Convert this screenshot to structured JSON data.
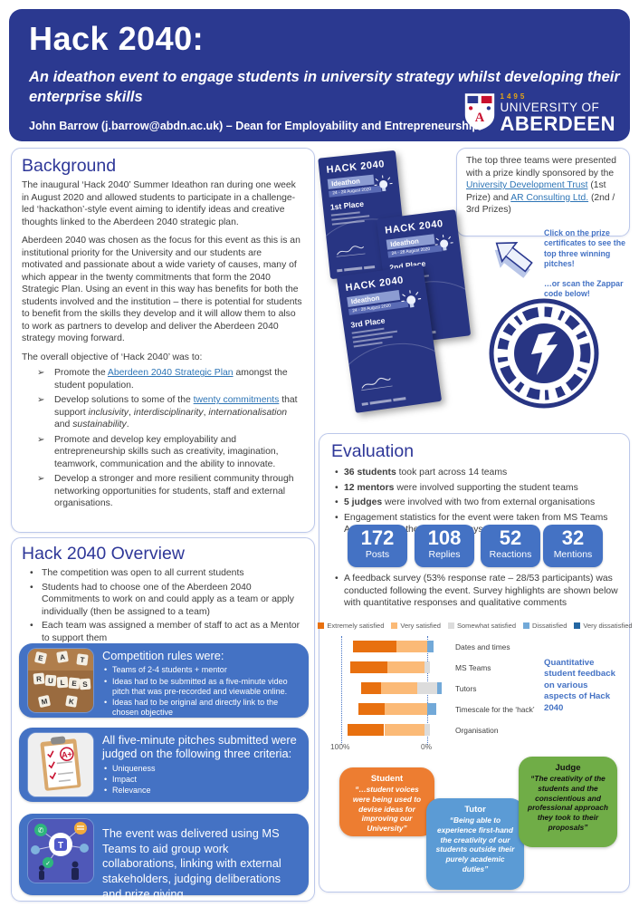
{
  "colors": {
    "header_navy": "#2B3990",
    "panel_border": "#BCC8EA",
    "section_title_blue": "#2E3798",
    "box_blue": "#4472C4",
    "link_blue": "#2E75B6",
    "student_orange": "#ED7D31",
    "tutor_blue": "#5B9BD5",
    "judge_green": "#70AD47"
  },
  "header": {
    "title": "Hack 2040:",
    "subtitle": "An ideathon event to engage students in university strategy whilst developing their enterprise skills",
    "author": "John Barrow (j.barrow@abdn.ac.uk) – Dean for Employability and Entrepreneurship",
    "logo": {
      "founded": "1495",
      "line1": "UNIVERSITY OF",
      "line2": "ABERDEEN"
    }
  },
  "background": {
    "title": "Background",
    "para1": "The inaugural ‘Hack 2040’ Summer Ideathon ran during one week in August 2020 and allowed students to participate in a challenge-led ‘hackathon’-style event aiming to identify ideas and creative thoughts linked to the Aberdeen 2040 strategic plan.",
    "para2": "Aberdeen 2040 was chosen as the focus for this event as this is an institutional priority for the University and our students are motivated and passionate about a wide variety of causes, many of which appear in the twenty commitments that form the 2040 Strategic Plan.  Using an event in this way has benefits for both the students involved and the institution – there is potential for students to benefit from the skills they develop and it will allow them to also to work as partners to develop and deliver the Aberdeen 2040 strategy moving forward.",
    "para3": "The overall objective of ‘Hack 2040’ was to:",
    "objectives": [
      [
        {
          "t": "Promote the "
        },
        {
          "t": "Aberdeen 2040 Strategic Plan",
          "link": 1
        },
        {
          "t": " amongst the student population."
        }
      ],
      [
        {
          "t": "Develop solutions to some of the "
        },
        {
          "t": "twenty commitments",
          "link": 1
        },
        {
          "t": " that support "
        },
        {
          "t": "inclusivity",
          "i": 1
        },
        {
          "t": ", "
        },
        {
          "t": "interdisciplinarity",
          "i": 1
        },
        {
          "t": ", "
        },
        {
          "t": "internationalisation",
          "i": 1
        },
        {
          "t": " and "
        },
        {
          "t": "sustainability",
          "i": 1
        },
        {
          "t": "."
        }
      ],
      [
        {
          "t": "Promote and develop key employability and entrepreneurship skills such as creativity, imagination, teamwork, communication and the ability to innovate."
        }
      ],
      [
        {
          "t": "Develop a stronger and more resilient community through networking opportunities for students, staff and external organisations."
        }
      ]
    ]
  },
  "prize_box": {
    "segments": [
      {
        "t": "The top three teams were presented with a prize kindly sponsored by the "
      },
      {
        "t": "University Development Trust",
        "link": 1
      },
      {
        "t": " (1st Prize) and "
      },
      {
        "t": "AR Consulting Ltd.",
        "link": 1
      },
      {
        "t": " (2nd / 3rd Prizes)"
      }
    ]
  },
  "cta": {
    "line1": "Click on the prize certificates to see the top three winning pitches!",
    "line2": "…or scan the Zappar code below!"
  },
  "certificates": [
    {
      "title": "HACK 2040",
      "subtitle": "Ideathon",
      "dates": "24 - 28 August 2020",
      "place": "1st Place"
    },
    {
      "title": "HACK 2040",
      "subtitle": "Ideathon",
      "dates": "24 - 28 August 2020",
      "place": "2nd Place"
    },
    {
      "title": "HACK 2040",
      "subtitle": "Ideathon",
      "dates": "24 - 28 August 2020",
      "place": "3rd Place"
    }
  ],
  "overview": {
    "title": "Hack 2040 Overview",
    "bullets": [
      "The competition was open to all current students",
      "Students had to choose one of the Aberdeen 2040 Commitments to work on and could apply as a team or apply individually (then be assigned to a team)",
      "Each team was assigned a member of staff to act as a Mentor to support them"
    ],
    "box_rules": {
      "title": "Competition rules were:",
      "bullets": [
        "Teams of 2-4 students + mentor",
        "Ideas had to be submitted as a five-minute video pitch that was pre-recorded and viewable online.",
        "Ideas had to be original and directly link to the chosen objective"
      ]
    },
    "box_judging": {
      "title": "All five-minute pitches submitted were judged on the following three criteria:",
      "bullets": [
        "Uniqueness",
        "Impact",
        "Relevance"
      ]
    },
    "box_teams": {
      "text": "The event was delivered using MS Teams to aid group work collaborations, linking with external stakeholders, judging deliberations and prize giving"
    }
  },
  "evaluation": {
    "title": "Evaluation",
    "bullets": [
      [
        {
          "t": "36 students",
          "b": 1
        },
        {
          "t": " took part across 14 teams"
        }
      ],
      [
        {
          "t": "12 mentors",
          "b": 1
        },
        {
          "t": " were involved supporting the student teams"
        }
      ],
      [
        {
          "t": "5 judges",
          "b": 1
        },
        {
          "t": " were involved with two from external organisations"
        }
      ],
      [
        {
          "t": "Engagement statistics for the event were taken from MS Teams Analytics from the first three days:"
        }
      ]
    ],
    "stats": [
      {
        "value": "172",
        "label": "Posts"
      },
      {
        "value": "108",
        "label": "Replies"
      },
      {
        "value": "52",
        "label": "Reactions"
      },
      {
        "value": "32",
        "label": "Mentions"
      }
    ],
    "feedback": [
      {
        "t": "A feedback survey (53% response rate – 28/53 participants) was conducted following the event.  Survey highlights are shown below with quantitative responses and qualitative comments"
      }
    ],
    "quant_note": "Quantitative student feedback on various aspects of Hack 2040"
  },
  "chart_data": {
    "type": "bar",
    "variant": "diverging-stacked-horizontal",
    "title": "Quantitative student feedback on various aspects of Hack 2040",
    "categories": [
      "Dates and times",
      "MS Teams",
      "Tutors",
      "Timescale for the ‘hack’",
      "Organisation"
    ],
    "series": [
      {
        "name": "Extremely satisfied",
        "color": "#E8700F",
        "values": [
          50,
          43,
          23,
          30,
          43
        ]
      },
      {
        "name": "Very satisfied",
        "color": "#FBBA77",
        "values": [
          36,
          43,
          42,
          50,
          47
        ]
      },
      {
        "name": "Somewhat satisfied",
        "color": "#DCDCDC",
        "values": [
          0,
          7,
          24,
          0,
          6
        ]
      },
      {
        "name": "Dissatisfied",
        "color": "#72A9D8",
        "values": [
          7,
          0,
          5,
          10,
          0
        ]
      },
      {
        "name": "Very dissatisfied",
        "color": "#2366A2",
        "values": [
          0,
          0,
          0,
          0,
          0
        ]
      }
    ],
    "axis": {
      "left_label": "100%",
      "right_label": "0%",
      "range": [
        100,
        0
      ]
    },
    "legend_position": "top",
    "grid": "two dotted vertical lines at 100% and 0%"
  },
  "quotes": [
    {
      "who": "Student",
      "text": "“…student voices were being used to devise ideas for improving our University”"
    },
    {
      "who": "Tutor",
      "text": "“Being able to experience first-hand the creativity of our students outside their purely academic duties”"
    },
    {
      "who": "Judge",
      "text": "“The creativity of the students and the conscientious and professional approach they took to their proposals”"
    }
  ]
}
